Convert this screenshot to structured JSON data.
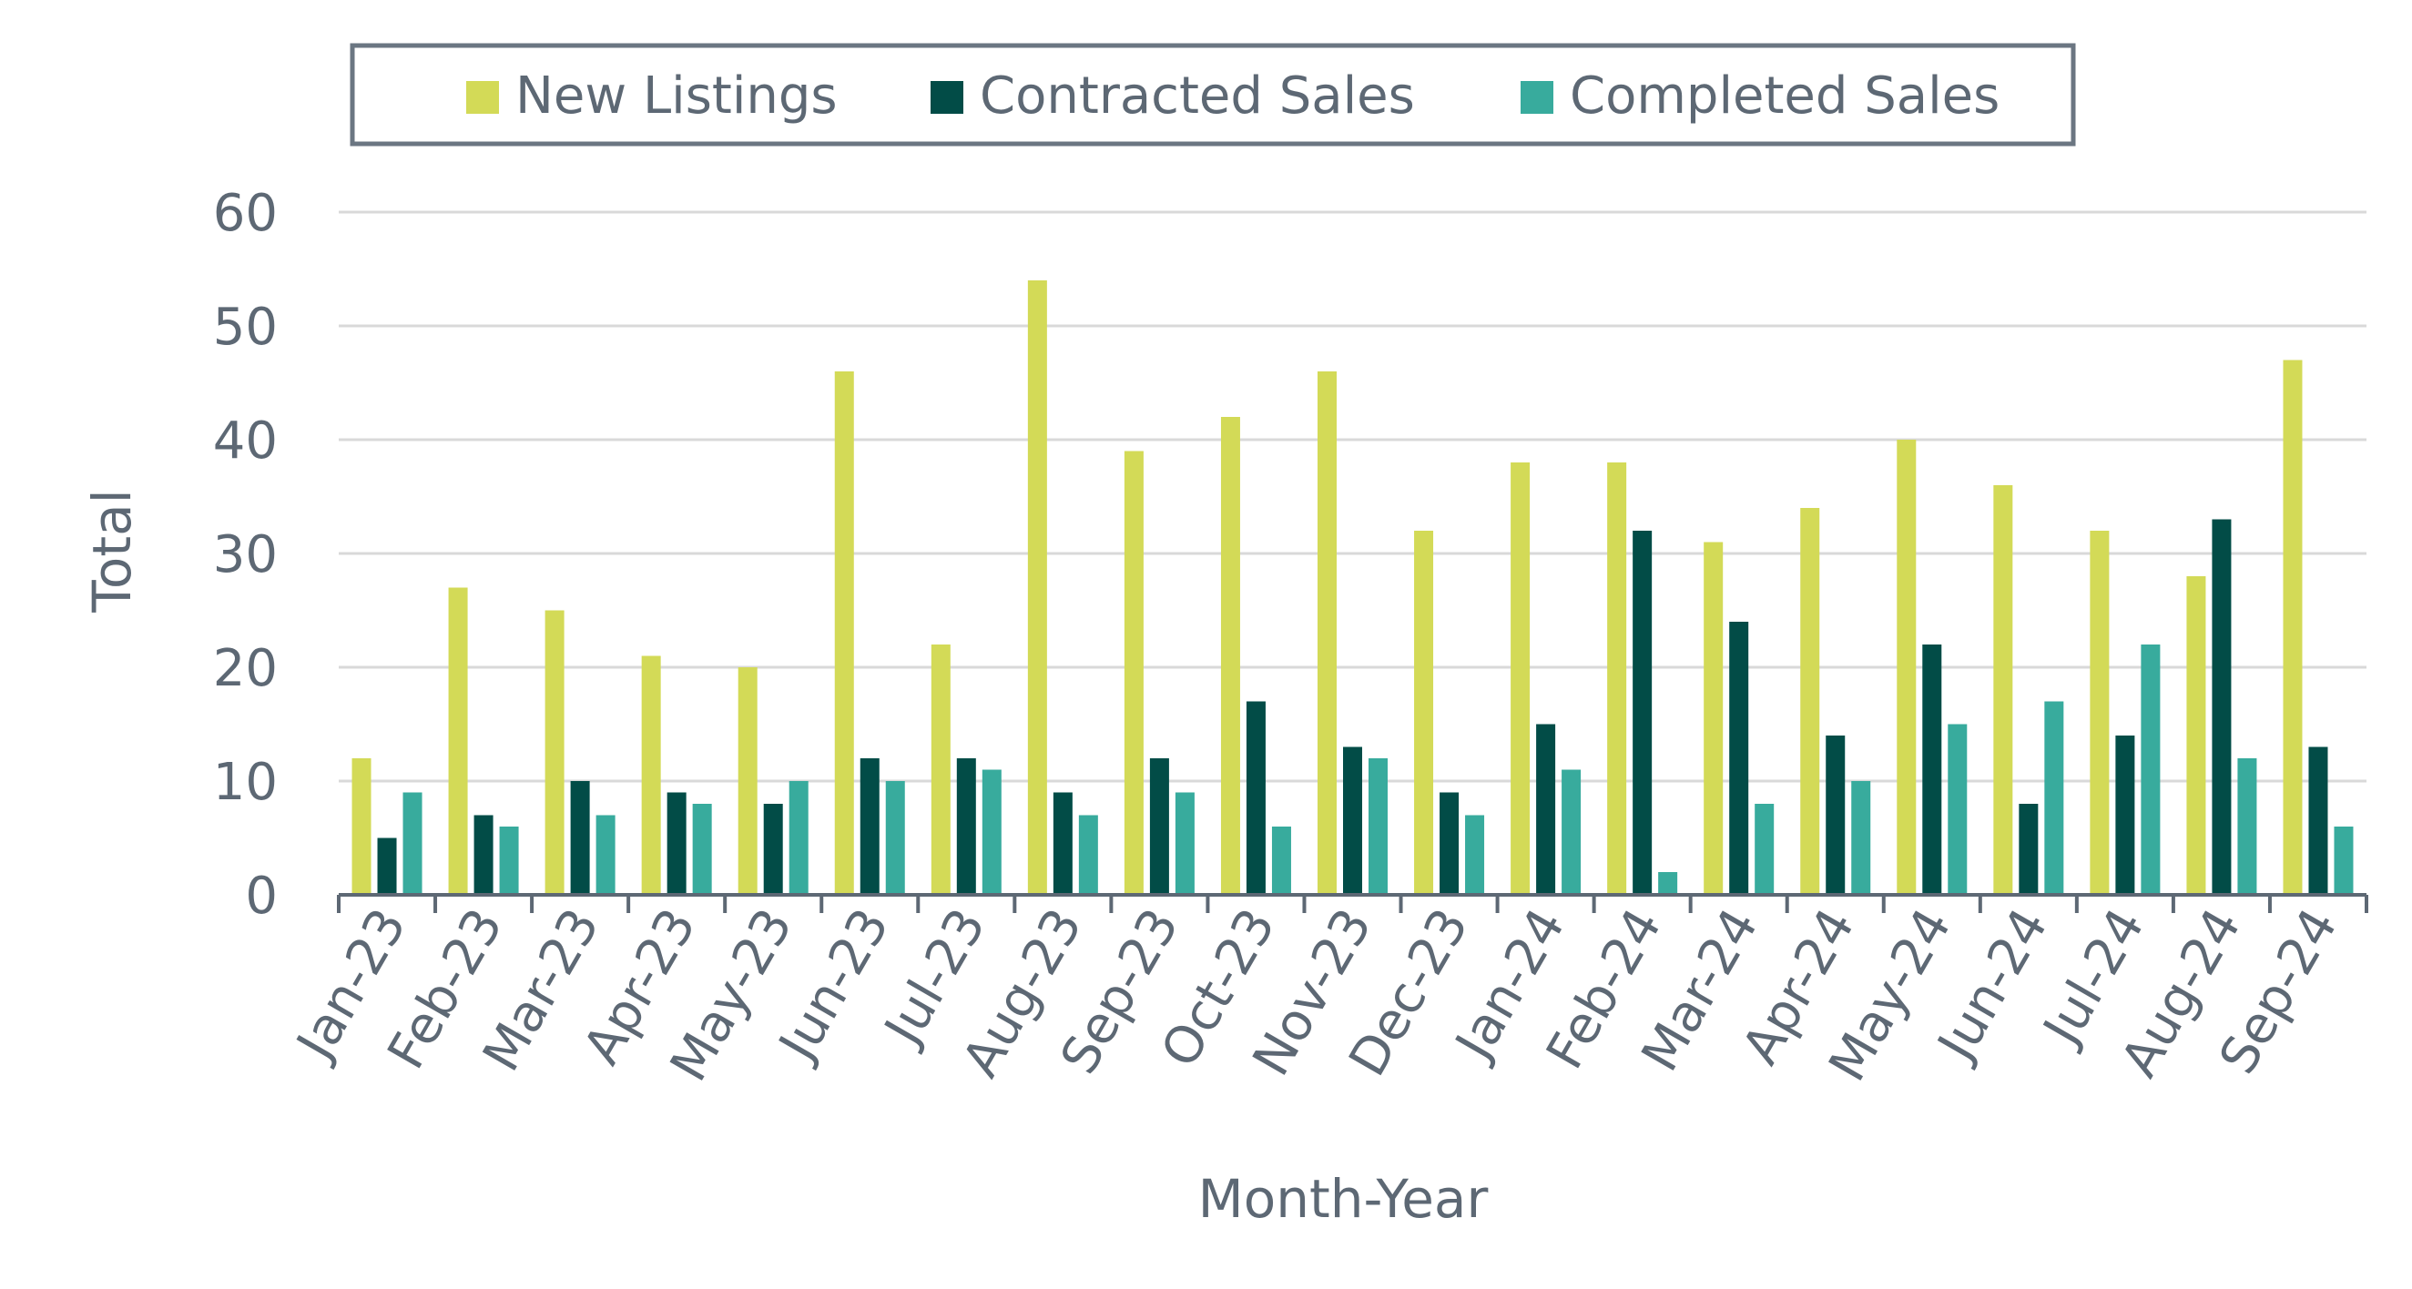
{
  "chart_data": {
    "type": "bar",
    "xlabel": "Month-Year",
    "ylabel": "Total",
    "ylim": [
      0,
      60
    ],
    "yticks": [
      0,
      10,
      20,
      30,
      40,
      50,
      60
    ],
    "grid": true,
    "legend_position": "top",
    "categories": [
      "Jan-23",
      "Feb-23",
      "Mar-23",
      "Apr-23",
      "May-23",
      "Jun-23",
      "Jul-23",
      "Aug-23",
      "Sep-23",
      "Oct-23",
      "Nov-23",
      "Dec-23",
      "Jan-24",
      "Feb-24",
      "Mar-24",
      "Apr-24",
      "May-24",
      "Jun-24",
      "Jul-24",
      "Aug-24",
      "Sep-24"
    ],
    "series": [
      {
        "name": "New Listings",
        "color": "#d3da57",
        "values": [
          12,
          27,
          25,
          21,
          20,
          46,
          22,
          54,
          39,
          42,
          46,
          32,
          38,
          38,
          31,
          34,
          40,
          36,
          32,
          28,
          47
        ]
      },
      {
        "name": "Contracted Sales",
        "color": "#024c47",
        "values": [
          5,
          7,
          10,
          9,
          8,
          12,
          12,
          9,
          12,
          17,
          13,
          9,
          15,
          32,
          24,
          14,
          22,
          8,
          14,
          33,
          13
        ]
      },
      {
        "name": "Completed Sales",
        "color": "#38ab9d",
        "values": [
          9,
          6,
          7,
          8,
          10,
          10,
          11,
          7,
          9,
          6,
          12,
          7,
          11,
          2,
          8,
          10,
          15,
          17,
          22,
          12,
          6
        ]
      }
    ]
  }
}
